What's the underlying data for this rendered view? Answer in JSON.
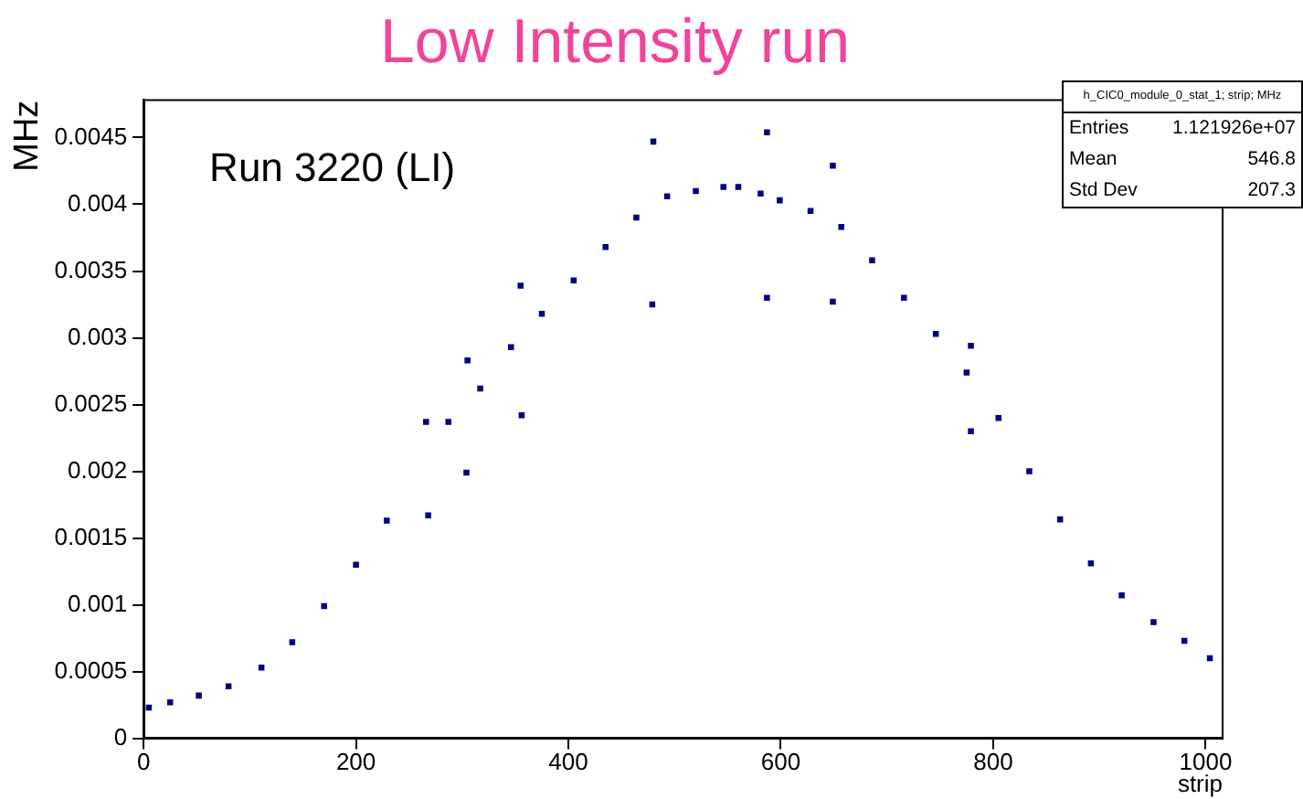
{
  "chart_data": {
    "type": "scatter",
    "title": "Low Intensity run",
    "xlabel": "strip",
    "ylabel": "MHz",
    "annotations": [
      "Run 3220 (LI)",
      "h_CIC0_module_0_stat_1; strip; MHz",
      "Entries",
      "1.121926e+07",
      "Mean",
      "546.8",
      "Std Dev",
      "207.3"
    ],
    "xlim": [
      0,
      1016
    ],
    "ylim": [
      0,
      0.00478
    ],
    "xticks": [
      0,
      200,
      400,
      600,
      800,
      1000
    ],
    "yticks": [
      0,
      0.0005,
      0.001,
      0.0015,
      0.002,
      0.0025,
      0.003,
      0.0035,
      0.004,
      0.0045
    ],
    "grid": false,
    "legend": false,
    "marker": "square",
    "series": [
      {
        "color": "#000080",
        "x": [
          5,
          25,
          52,
          80,
          111,
          140,
          170,
          200,
          229,
          266,
          268,
          287,
          304,
          305,
          317,
          346,
          355,
          356,
          375,
          405,
          435,
          464,
          479,
          480,
          493,
          520,
          546,
          560,
          581,
          587,
          587,
          599,
          628,
          649,
          649,
          657,
          686,
          716,
          746,
          775,
          779,
          779,
          805,
          834,
          863,
          892,
          921,
          951,
          980,
          1004
        ],
        "values": [
          0.00023,
          0.00027,
          0.00032,
          0.00039,
          0.00053,
          0.00072,
          0.00099,
          0.0013,
          0.00163,
          0.00237,
          0.00167,
          0.00237,
          0.00199,
          0.00283,
          0.00262,
          0.00293,
          0.00339,
          0.00242,
          0.00318,
          0.00343,
          0.00368,
          0.0039,
          0.00325,
          0.00447,
          0.00406,
          0.0041,
          0.00413,
          0.00413,
          0.00408,
          0.00454,
          0.0033,
          0.00403,
          0.00395,
          0.00429,
          0.00327,
          0.00383,
          0.00358,
          0.0033,
          0.00303,
          0.00274,
          0.00294,
          0.0023,
          0.0024,
          0.002,
          0.00164,
          0.00131,
          0.00107,
          0.00087,
          0.00073,
          0.0006
        ]
      }
    ]
  }
}
